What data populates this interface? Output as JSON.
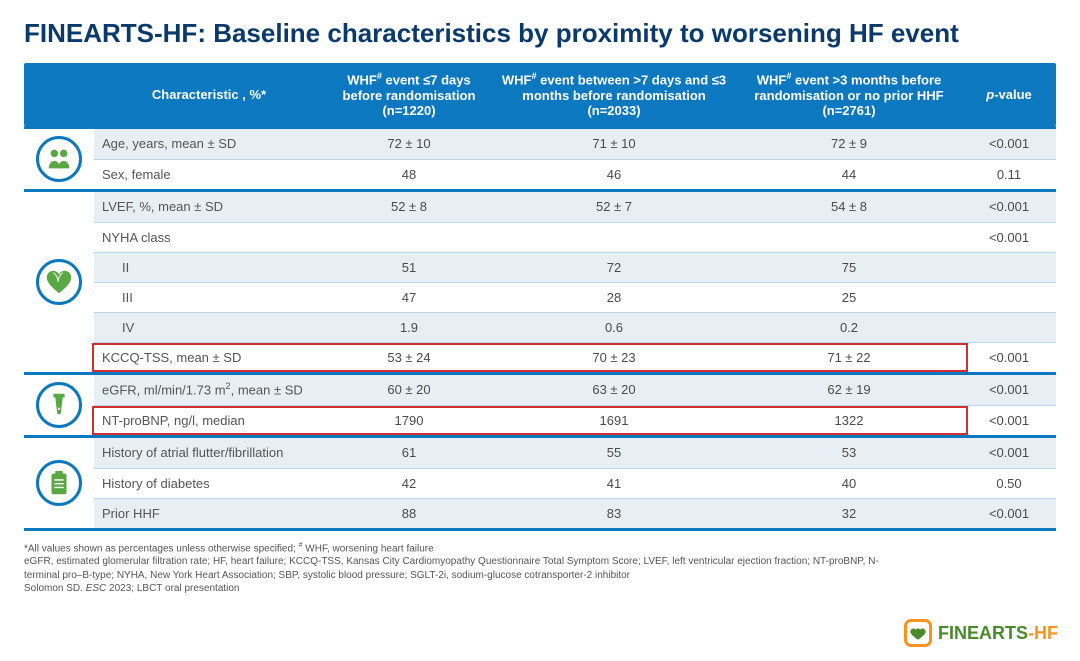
{
  "title": "FINEARTS-HF: Baseline characteristics by proximity to worsening HF event",
  "header": {
    "characteristic": "Characteristic , %*",
    "g1": "WHF# event ≤7 days before randomisation (n=1220)",
    "g2": "WHF# event between >7 days and ≤3 months before randomisation (n=2033)",
    "g3": "WHF# event >3 months before randomisation or no prior HHF (n=2761)",
    "pvalue_prefix": "p",
    "pvalue_suffix": "-value"
  },
  "sections": [
    {
      "icon": "people",
      "rows": [
        {
          "label": "Age, years, mean ± SD",
          "g1": "72 ± 10",
          "g2": "71 ± 10",
          "g3": "72 ± 9",
          "p": "<0.001",
          "alt": true
        },
        {
          "label": "Sex, female",
          "g1": "48",
          "g2": "46",
          "g3": "44",
          "p": "0.11"
        }
      ]
    },
    {
      "icon": "heart",
      "rows": [
        {
          "label": "LVEF, %, mean ± SD",
          "g1": "52 ± 8",
          "g2": "52 ± 7",
          "g3": "54 ± 8",
          "p": "<0.001",
          "alt": true
        },
        {
          "label": "NYHA class",
          "g1": "",
          "g2": "",
          "g3": "",
          "p": "<0.001"
        },
        {
          "label": "II",
          "g1": "51",
          "g2": "72",
          "g3": "75",
          "p": "",
          "alt": true,
          "indent": true
        },
        {
          "label": "III",
          "g1": "47",
          "g2": "28",
          "g3": "25",
          "p": "",
          "indent": true
        },
        {
          "label": "IV",
          "g1": "1.9",
          "g2": "0.6",
          "g3": "0.2",
          "p": "",
          "alt": true,
          "indent": true
        },
        {
          "label": "KCCQ-TSS, mean ± SD",
          "g1": "53 ± 24",
          "g2": "70 ± 23",
          "g3": "71 ± 22",
          "p": "<0.001",
          "highlight": true
        }
      ]
    },
    {
      "icon": "tube",
      "rows": [
        {
          "label_html": "eGFR, ml/min/1.73 m<sup>2</sup>, mean ± SD",
          "g1": "60 ± 20",
          "g2": "63 ± 20",
          "g3": "62 ± 19",
          "p": "<0.001",
          "alt": true
        },
        {
          "label": "NT-proBNP, ng/l, median",
          "g1": "1790",
          "g2": "1691",
          "g3": "1322",
          "p": "<0.001",
          "highlight": true
        }
      ]
    },
    {
      "icon": "clipboard",
      "rows": [
        {
          "label": "History of atrial flutter/fibrillation",
          "g1": "61",
          "g2": "55",
          "g3": "53",
          "p": "<0.001",
          "alt": true
        },
        {
          "label": "History of diabetes",
          "g1": "42",
          "g2": "41",
          "g3": "40",
          "p": "0.50"
        },
        {
          "label": "Prior HHF",
          "g1": "88",
          "g2": "83",
          "g3": "32",
          "p": "<0.001",
          "alt": true
        }
      ]
    }
  ],
  "footnotes": [
    "*All values shown as percentages unless otherwise specified; # WHF, worsening heart failure",
    "eGFR, estimated glomerular filtration rate; HF, heart failure; KCCQ-TSS, Kansas City Cardiomyopathy Questionnaire Total Symptom Score; LVEF, left ventricular ejection fraction; NT-proBNP, N-terminal pro–B-type; NYHA, New York Heart Association; SBP, systolic blood pressure; SGLT-2i, sodium-glucose cotransporter-2 inhibitor",
    "Solomon SD. ESC 2023; LBCT oral presentation"
  ],
  "logo": {
    "part1": "FINEARTS",
    "part2": "-HF"
  },
  "colors": {
    "title": "#0a3a6b",
    "header_bg": "#0b78bf",
    "row_alt": "#e7eef4",
    "border": "#b9d6ea",
    "highlight": "#d22e2e",
    "icon_green": "#5aa843",
    "logo_orange": "#f7941d",
    "logo_green": "#4a8a2a"
  }
}
